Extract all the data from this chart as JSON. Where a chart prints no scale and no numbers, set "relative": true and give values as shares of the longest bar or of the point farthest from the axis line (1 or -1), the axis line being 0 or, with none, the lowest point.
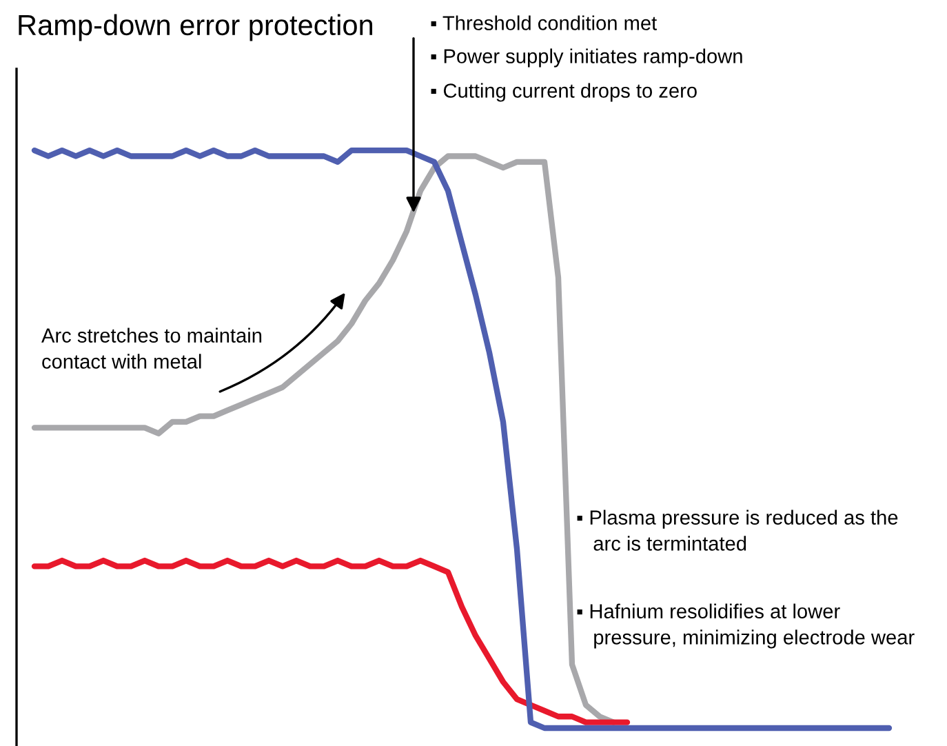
{
  "chart_data": {
    "type": "line",
    "relative": true,
    "title": "Ramp-down error protection",
    "categories": [
      null,
      null,
      null,
      null,
      null,
      null,
      null,
      null,
      null,
      null,
      null,
      null,
      null,
      null,
      null,
      null,
      null,
      null,
      null,
      null,
      null,
      null,
      null,
      null,
      null,
      null,
      null,
      null,
      null,
      null,
      null,
      null,
      null,
      null,
      null,
      null,
      null,
      null,
      null,
      null,
      null,
      null,
      null,
      null,
      null,
      null,
      null,
      null,
      null,
      null,
      null,
      null,
      null,
      null,
      null,
      null,
      null,
      null,
      null,
      null,
      null,
      null,
      null
    ],
    "series": [
      {
        "color": "#a8a8ab",
        "values": [
          0.52,
          0.52,
          0.52,
          0.52,
          0.52,
          0.52,
          0.52,
          0.52,
          0.52,
          0.51,
          0.53,
          0.53,
          0.54,
          0.54,
          0.55,
          0.56,
          0.57,
          0.58,
          0.59,
          0.61,
          0.63,
          0.65,
          0.67,
          0.7,
          0.74,
          0.77,
          0.81,
          0.86,
          0.93,
          0.97,
          0.99,
          0.99,
          0.99,
          0.98,
          0.97,
          0.98,
          0.98,
          0.98,
          0.78,
          0.11,
          0.04,
          0.02,
          0.01,
          null,
          null,
          null,
          null,
          null,
          null,
          null,
          null,
          null,
          null,
          null,
          null,
          null,
          null,
          null,
          null,
          null,
          null,
          null,
          null
        ]
      },
      {
        "color": "#e8192c",
        "values": [
          0.28,
          0.28,
          0.29,
          0.28,
          0.28,
          0.29,
          0.28,
          0.28,
          0.29,
          0.28,
          0.28,
          0.29,
          0.28,
          0.28,
          0.29,
          0.28,
          0.28,
          0.29,
          0.28,
          0.29,
          0.28,
          0.28,
          0.29,
          0.28,
          0.28,
          0.29,
          0.28,
          0.28,
          0.29,
          0.28,
          0.27,
          0.21,
          0.16,
          0.12,
          0.08,
          0.05,
          0.04,
          0.03,
          0.02,
          0.02,
          0.01,
          0.01,
          0.01,
          0.01,
          null,
          null,
          null,
          null,
          null,
          null,
          null,
          null,
          null,
          null,
          null,
          null,
          null,
          null,
          null,
          null,
          null,
          null,
          null
        ]
      },
      {
        "color": "#4f5fb0",
        "values": [
          1.0,
          0.99,
          1.0,
          0.99,
          1.0,
          0.99,
          1.0,
          0.99,
          0.99,
          0.99,
          0.99,
          1.0,
          0.99,
          1.0,
          0.99,
          0.99,
          1.0,
          0.99,
          0.99,
          0.99,
          0.99,
          0.99,
          0.98,
          1.0,
          1.0,
          1.0,
          1.0,
          1.0,
          0.99,
          0.98,
          0.93,
          0.84,
          0.75,
          0.65,
          0.53,
          0.31,
          0.01,
          0,
          0,
          0,
          0,
          0,
          0,
          0,
          0,
          0,
          0,
          0,
          0,
          0,
          0,
          0,
          0,
          0,
          0,
          0,
          0,
          0,
          0,
          0,
          0,
          0,
          0
        ]
      }
    ],
    "annotations": [
      "▪ Threshold condition met",
      "▪ Power supply initiates ramp-down",
      "▪ Cutting current drops to zero",
      "Arc stretches to maintain\ncontact with metal",
      "▪ Plasma pressure is reduced as the\n   arc is termintated",
      "▪ Hafnium resolidifies at lower\n   pressure, minimizing electrode wear"
    ]
  }
}
